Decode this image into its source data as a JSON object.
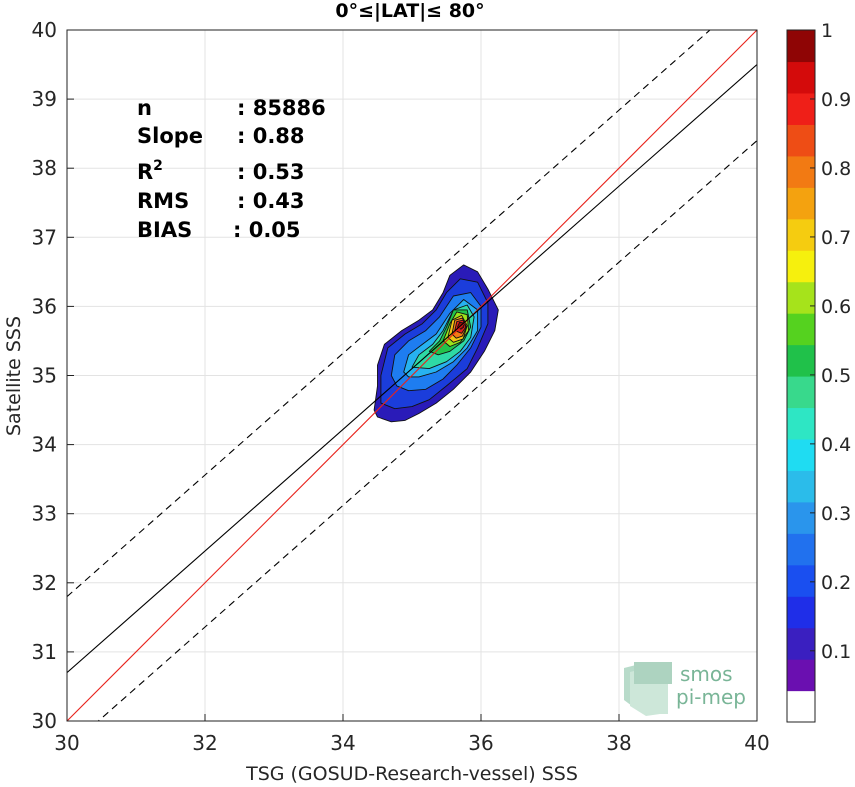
{
  "chart_data": {
    "type": "contour-scatter",
    "title": "0°≤|LAT|≤ 80°",
    "xlabel": "TSG (GOSUD-Research-vessel) SSS",
    "ylabel": "Satellite SSS",
    "xlim": [
      30,
      40
    ],
    "ylim": [
      30,
      40
    ],
    "xticks": [
      "30",
      "32",
      "34",
      "36",
      "38",
      "40"
    ],
    "yticks": [
      "30",
      "31",
      "32",
      "33",
      "34",
      "35",
      "36",
      "37",
      "38",
      "39",
      "40"
    ],
    "grid": true,
    "stats": [
      {
        "label": "n",
        "value": ": 85886"
      },
      {
        "label": "Slope",
        "value": ": 0.88"
      },
      {
        "label": "R",
        "sup": "2",
        "value": ": 0.53"
      },
      {
        "label": "RMS",
        "value": ": 0.43"
      },
      {
        "label": "BIAS",
        "value": ": 0.05"
      }
    ],
    "lines": [
      {
        "name": "one-to-one",
        "color": "#e8221b",
        "style": "solid",
        "slope": 1,
        "intercept": 0
      },
      {
        "name": "regression",
        "color": "#000000",
        "style": "solid",
        "slope": 0.88,
        "intercept": 4.3
      },
      {
        "name": "upper-bound",
        "color": "#000000",
        "style": "dashed",
        "slope": 0.88,
        "intercept": 5.4
      },
      {
        "name": "lower-bound",
        "color": "#000000",
        "style": "dashed",
        "slope": 0.88,
        "intercept": 3.2
      }
    ],
    "density_peak": {
      "x": 35.7,
      "y": 35.75
    },
    "contours": [
      {
        "level": 0.05,
        "color": "#2a1bb8",
        "points": [
          [
            34.45,
            34.5
          ],
          [
            34.5,
            34.85
          ],
          [
            34.5,
            35.15
          ],
          [
            34.6,
            35.45
          ],
          [
            34.85,
            35.65
          ],
          [
            35.1,
            35.8
          ],
          [
            35.3,
            35.95
          ],
          [
            35.45,
            36.2
          ],
          [
            35.55,
            36.45
          ],
          [
            35.75,
            36.6
          ],
          [
            35.95,
            36.5
          ],
          [
            36.1,
            36.25
          ],
          [
            36.25,
            35.95
          ],
          [
            36.2,
            35.65
          ],
          [
            36.05,
            35.35
          ],
          [
            35.85,
            35.05
          ],
          [
            35.6,
            34.8
          ],
          [
            35.35,
            34.6
          ],
          [
            35.1,
            34.45
          ],
          [
            34.9,
            34.35
          ],
          [
            34.7,
            34.33
          ],
          [
            34.5,
            34.4
          ]
        ]
      },
      {
        "level": 0.1,
        "color": "#1b3ddb",
        "points": [
          [
            34.55,
            34.6
          ],
          [
            34.55,
            35.0
          ],
          [
            34.65,
            35.4
          ],
          [
            34.9,
            35.6
          ],
          [
            35.15,
            35.75
          ],
          [
            35.35,
            35.95
          ],
          [
            35.5,
            36.2
          ],
          [
            35.7,
            36.4
          ],
          [
            35.95,
            36.35
          ],
          [
            36.1,
            36.05
          ],
          [
            36.1,
            35.75
          ],
          [
            35.95,
            35.4
          ],
          [
            35.8,
            35.1
          ],
          [
            35.5,
            34.85
          ],
          [
            35.25,
            34.65
          ],
          [
            35.0,
            34.55
          ],
          [
            34.75,
            34.52
          ]
        ]
      },
      {
        "level": 0.2,
        "color": "#1e7df0",
        "points": [
          [
            34.7,
            35.0
          ],
          [
            34.75,
            35.3
          ],
          [
            34.95,
            35.5
          ],
          [
            35.2,
            35.65
          ],
          [
            35.4,
            35.85
          ],
          [
            35.6,
            36.15
          ],
          [
            35.85,
            36.2
          ],
          [
            36.0,
            36.0
          ],
          [
            36.0,
            35.7
          ],
          [
            35.85,
            35.4
          ],
          [
            35.65,
            35.15
          ],
          [
            35.45,
            34.95
          ],
          [
            35.2,
            34.8
          ],
          [
            34.95,
            34.78
          ],
          [
            34.78,
            34.85
          ]
        ]
      },
      {
        "level": 0.3,
        "color": "#27b2f0",
        "points": [
          [
            34.88,
            35.05
          ],
          [
            34.95,
            35.3
          ],
          [
            35.15,
            35.45
          ],
          [
            35.35,
            35.6
          ],
          [
            35.55,
            35.9
          ],
          [
            35.75,
            36.1
          ],
          [
            35.95,
            35.95
          ],
          [
            35.95,
            35.65
          ],
          [
            35.8,
            35.4
          ],
          [
            35.6,
            35.2
          ],
          [
            35.35,
            35.05
          ],
          [
            35.1,
            34.98
          ],
          [
            34.95,
            34.98
          ]
        ]
      },
      {
        "level": 0.4,
        "color": "#2ed9a5",
        "points": [
          [
            35.0,
            35.12
          ],
          [
            35.1,
            35.3
          ],
          [
            35.3,
            35.45
          ],
          [
            35.45,
            35.65
          ],
          [
            35.6,
            35.95
          ],
          [
            35.8,
            36.02
          ],
          [
            35.9,
            35.85
          ],
          [
            35.85,
            35.55
          ],
          [
            35.7,
            35.35
          ],
          [
            35.5,
            35.2
          ],
          [
            35.25,
            35.1
          ]
        ]
      },
      {
        "level": 0.5,
        "color": "#22c44a",
        "points": [
          [
            35.25,
            35.35
          ],
          [
            35.4,
            35.5
          ],
          [
            35.5,
            35.7
          ],
          [
            35.6,
            35.95
          ],
          [
            35.8,
            35.95
          ],
          [
            35.85,
            35.7
          ],
          [
            35.75,
            35.5
          ],
          [
            35.55,
            35.35
          ],
          [
            35.38,
            35.3
          ]
        ]
      },
      {
        "level": 0.6,
        "color": "#9be31c",
        "points": [
          [
            35.45,
            35.5
          ],
          [
            35.55,
            35.75
          ],
          [
            35.65,
            35.92
          ],
          [
            35.8,
            35.88
          ],
          [
            35.82,
            35.65
          ],
          [
            35.7,
            35.48
          ],
          [
            35.55,
            35.42
          ]
        ]
      },
      {
        "level": 0.7,
        "color": "#f2c313",
        "points": [
          [
            35.52,
            35.55
          ],
          [
            35.58,
            35.8
          ],
          [
            35.72,
            35.87
          ],
          [
            35.8,
            35.72
          ],
          [
            35.74,
            35.53
          ],
          [
            35.6,
            35.48
          ]
        ]
      },
      {
        "level": 0.8,
        "color": "#f47a14",
        "points": [
          [
            35.58,
            35.6
          ],
          [
            35.62,
            35.8
          ],
          [
            35.73,
            35.83
          ],
          [
            35.79,
            35.7
          ],
          [
            35.73,
            35.57
          ],
          [
            35.64,
            35.54
          ]
        ]
      },
      {
        "level": 0.9,
        "color": "#e0201a",
        "points": [
          [
            35.62,
            35.65
          ],
          [
            35.65,
            35.78
          ],
          [
            35.74,
            35.8
          ],
          [
            35.78,
            35.7
          ],
          [
            35.72,
            35.61
          ]
        ]
      },
      {
        "level": 1.0,
        "color": "#9a0b08",
        "points": [
          [
            35.66,
            35.7
          ],
          [
            35.69,
            35.77
          ],
          [
            35.75,
            35.76
          ],
          [
            35.75,
            35.7
          ],
          [
            35.71,
            35.67
          ]
        ]
      }
    ],
    "colorbar": {
      "ticks": [
        "0.1",
        "0.2",
        "0.3",
        "0.4",
        "0.5",
        "0.6",
        "0.7",
        "0.8",
        "0.9",
        "1"
      ],
      "tick_values": [
        0.1,
        0.2,
        0.3,
        0.4,
        0.5,
        0.6,
        0.7,
        0.8,
        0.9,
        1.0
      ],
      "colors": [
        "#ffffff",
        "#6a0fb0",
        "#3a1fc0",
        "#1f2ee8",
        "#1a4ff0",
        "#2171ee",
        "#2a95ec",
        "#2bbcea",
        "#1fdcf2",
        "#2ee6c4",
        "#38d98c",
        "#20c14a",
        "#55d21f",
        "#a6e31b",
        "#f6f00d",
        "#f5cc10",
        "#f4a20f",
        "#f27a13",
        "#ee4d15",
        "#ef1f18",
        "#d40b0b",
        "#8f0505"
      ]
    }
  },
  "logo": {
    "line1": "smos",
    "line2": "pi-mep"
  }
}
